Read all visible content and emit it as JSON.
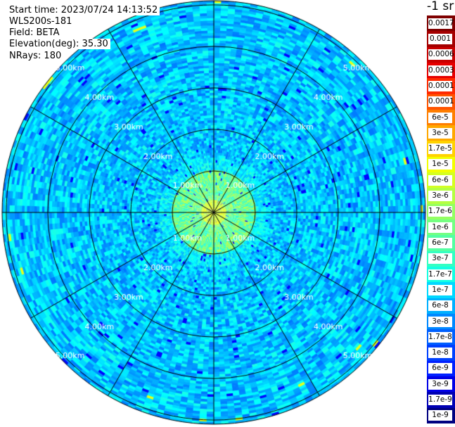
{
  "info": {
    "start_time": "Start time: 2023/07/24 14:13:52",
    "instrument": "WLS200s-181",
    "field": "Field: BETA",
    "elevation": "Elevation(deg): 35.30",
    "nrays": "NRays: 180"
  },
  "colorbar": {
    "unit_label": "-1 sr",
    "tick_labels": [
      "0.0017",
      "0.001",
      "0.0006",
      "0.0003",
      "0.00017",
      "0.0001",
      "6e-5",
      "3e-5",
      "1.7e-5",
      "1e-5",
      "6e-6",
      "3e-6",
      "1.7e-6",
      "1e-6",
      "6e-7",
      "3e-7",
      "1.7e-7",
      "1e-7",
      "6e-8",
      "3e-8",
      "1.7e-8",
      "1e-8",
      "6e-9",
      "3e-9",
      "1.7e-9",
      "1e-9"
    ],
    "colors": [
      "#7f0000",
      "#a50000",
      "#c80000",
      "#e60000",
      "#ff2a00",
      "#ff5400",
      "#ff7e00",
      "#ffa800",
      "#ffd200",
      "#f2ff00",
      "#d4ff22",
      "#b4ff42",
      "#94ff62",
      "#74ff82",
      "#54ffa2",
      "#34ffc2",
      "#14ffe2",
      "#00d8ff",
      "#00b0ff",
      "#0088ff",
      "#0060ff",
      "#0040ff",
      "#0020ff",
      "#0000e6",
      "#0000b4",
      "#000080"
    ]
  },
  "chart_data": {
    "type": "heatmap",
    "projection": "polar PPI scan",
    "field": "BETA",
    "elevation_deg": 35.3,
    "n_rays": 180,
    "range_unit": "km",
    "range_rings_km": [
      1.0,
      2.0,
      3.0,
      4.0,
      5.0
    ],
    "range_ring_labels": [
      "1.00km",
      "2.00km",
      "3.00km",
      "4.00km",
      "5.00km"
    ],
    "max_range_km": 5.1,
    "azimuth_spokes_deg": [
      0,
      30,
      60,
      90,
      120,
      150,
      180,
      210,
      240,
      270,
      300,
      330
    ],
    "color_scale": "log",
    "value_range": [
      1e-09,
      0.0017
    ],
    "typical_values": {
      "near_field_0_to_1km": "1e-6 to 3e-7",
      "mid_range_1_to_3km": "6e-8 to 1e-8",
      "outer_range_3_to_5km": "6e-8 to 1e-8"
    },
    "grid": true
  }
}
